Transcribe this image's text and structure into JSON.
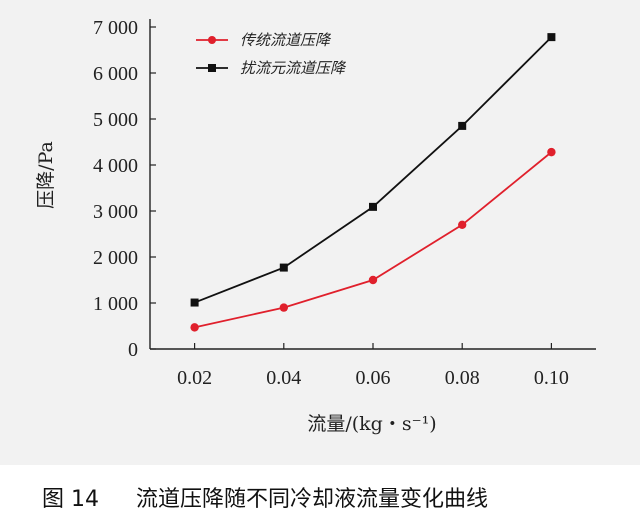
{
  "chart_data": {
    "type": "line",
    "x": [
      0.02,
      0.04,
      0.06,
      0.08,
      0.1
    ],
    "x_tick_labels": [
      "0.02",
      "0.04",
      "0.06",
      "0.08",
      "0.10"
    ],
    "xlim": [
      0.01,
      0.11
    ],
    "y_tick_labels": [
      "0",
      "1 000",
      "2 000",
      "3 000",
      "4 000",
      "5 000",
      "6 000",
      "7 000"
    ],
    "y_ticks": [
      0,
      1000,
      2000,
      3000,
      4000,
      5000,
      6000,
      7000
    ],
    "ylim": [
      0,
      7000
    ],
    "xlabel": "流量/(kg・s⁻¹)",
    "ylabel": "压降/Pa",
    "grid": false,
    "legend_position": "top-left",
    "series": [
      {
        "name": "传统流道压降",
        "color": "#e0202c",
        "marker": "circle",
        "values": [
          470,
          900,
          1500,
          2700,
          4280
        ]
      },
      {
        "name": "扰流元流道压降",
        "color": "#111111",
        "marker": "square",
        "values": [
          1010,
          1770,
          3090,
          4850,
          6780
        ]
      }
    ]
  },
  "caption": {
    "number": "图 14",
    "text": "流道压降随不同冷却液流量变化曲线"
  }
}
